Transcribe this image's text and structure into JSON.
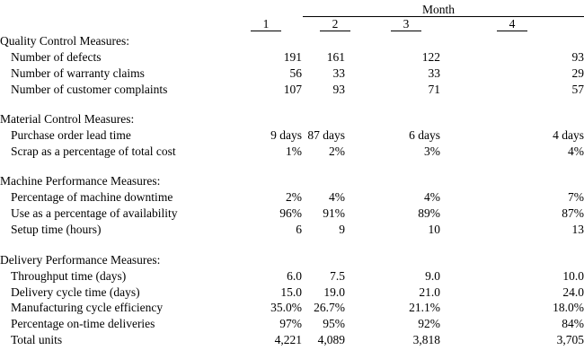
{
  "header": {
    "month_label": "Month",
    "columns": [
      "1",
      "2",
      "3",
      "4"
    ]
  },
  "sections": [
    {
      "title": "Quality Control Measures:",
      "rows": [
        {
          "label": "Number of defects",
          "values": [
            "191",
            "161",
            "122",
            "93"
          ]
        },
        {
          "label": "Number of warranty claims",
          "values": [
            "56",
            "33",
            "33",
            "29"
          ]
        },
        {
          "label": "Number of customer complaints",
          "values": [
            "107",
            "93",
            "71",
            "57"
          ]
        }
      ]
    },
    {
      "title": "Material Control Measures:",
      "rows": [
        {
          "label": "Purchase order lead time",
          "values": [
            "9 days",
            "87 days",
            "6 days",
            "4 days"
          ]
        },
        {
          "label": "Scrap as a percentage of total cost",
          "values": [
            "1%",
            "2%",
            "3%",
            "4%"
          ]
        }
      ]
    },
    {
      "title": "Machine Performance Measures:",
      "rows": [
        {
          "label": "Percentage of machine downtime",
          "values": [
            "2%",
            "4%",
            "4%",
            "7%"
          ]
        },
        {
          "label": "Use as a percentage of availability",
          "values": [
            "96%",
            "91%",
            "89%",
            "87%"
          ]
        },
        {
          "label": "Setup time (hours)",
          "values": [
            "6",
            "9",
            "10",
            "13"
          ]
        }
      ]
    },
    {
      "title": "Delivery Performance Measures:",
      "rows": [
        {
          "label": "Throughput time (days)",
          "values": [
            "6.0",
            "7.5",
            "9.0",
            "10.0"
          ]
        },
        {
          "label": "Delivery cycle time (days)",
          "values": [
            "15.0",
            "19.0",
            "21.0",
            "24.0"
          ]
        },
        {
          "label": "Manufacturing cycle efficiency",
          "values": [
            "35.0%",
            "26.7%",
            "21.1%",
            "18.0%"
          ]
        },
        {
          "label": "Percentage on-time deliveries",
          "values": [
            "97%",
            "95%",
            "92%",
            "84%"
          ]
        },
        {
          "label": "Total units",
          "values": [
            "4,221",
            "4,089",
            "3,818",
            "3,705"
          ]
        }
      ]
    }
  ]
}
